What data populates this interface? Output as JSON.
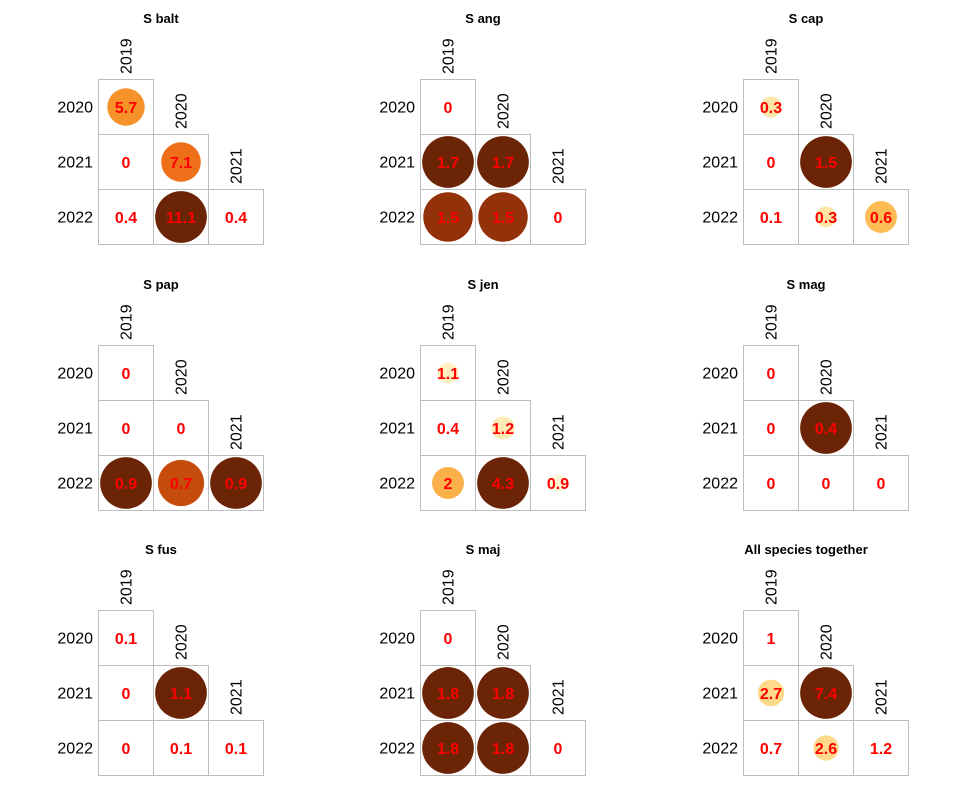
{
  "chart_data": [
    {
      "type": "heatmap",
      "title": "S balt",
      "col_labels": [
        "2019",
        "2020",
        "2021"
      ],
      "row_labels": [
        "2020",
        "2021",
        "2022"
      ],
      "cells": [
        {
          "row": 0,
          "col": 0,
          "label": "5.7",
          "color": "#f6922a",
          "size": 0.68
        },
        {
          "row": 1,
          "col": 0,
          "label": "0",
          "color": null,
          "size": 0
        },
        {
          "row": 1,
          "col": 1,
          "label": "7.1",
          "color": "#ee6f1a",
          "size": 0.72
        },
        {
          "row": 2,
          "col": 0,
          "label": "0.4",
          "color": null,
          "size": 0
        },
        {
          "row": 2,
          "col": 1,
          "label": "11.1",
          "color": "#6b2506",
          "size": 0.94
        },
        {
          "row": 2,
          "col": 2,
          "label": "0.4",
          "color": null,
          "size": 0
        }
      ]
    },
    {
      "type": "heatmap",
      "title": "S ang",
      "col_labels": [
        "2019",
        "2020",
        "2021"
      ],
      "row_labels": [
        "2020",
        "2021",
        "2022"
      ],
      "cells": [
        {
          "row": 0,
          "col": 0,
          "label": "0",
          "color": null,
          "size": 0
        },
        {
          "row": 1,
          "col": 0,
          "label": "1.7",
          "color": "#6b2506",
          "size": 0.94
        },
        {
          "row": 1,
          "col": 1,
          "label": "1.7",
          "color": "#6b2506",
          "size": 0.94
        },
        {
          "row": 2,
          "col": 0,
          "label": "1.5",
          "color": "#93320a",
          "size": 0.9
        },
        {
          "row": 2,
          "col": 1,
          "label": "1.5",
          "color": "#93320a",
          "size": 0.9
        },
        {
          "row": 2,
          "col": 2,
          "label": "0",
          "color": null,
          "size": 0
        }
      ]
    },
    {
      "type": "heatmap",
      "title": "S cap",
      "col_labels": [
        "2019",
        "2020",
        "2021"
      ],
      "row_labels": [
        "2020",
        "2021",
        "2022"
      ],
      "cells": [
        {
          "row": 0,
          "col": 0,
          "label": "0.3",
          "color": "#fee6a6",
          "size": 0.38
        },
        {
          "row": 1,
          "col": 0,
          "label": "0",
          "color": null,
          "size": 0
        },
        {
          "row": 1,
          "col": 1,
          "label": "1.5",
          "color": "#6b2506",
          "size": 0.94
        },
        {
          "row": 2,
          "col": 0,
          "label": "0.1",
          "color": null,
          "size": 0
        },
        {
          "row": 2,
          "col": 1,
          "label": "0.3",
          "color": "#fee6a6",
          "size": 0.38
        },
        {
          "row": 2,
          "col": 2,
          "label": "0.6",
          "color": "#fdbd54",
          "size": 0.58
        }
      ]
    },
    {
      "type": "heatmap",
      "title": "S pap",
      "col_labels": [
        "2019",
        "2020",
        "2021"
      ],
      "row_labels": [
        "2020",
        "2021",
        "2022"
      ],
      "cells": [
        {
          "row": 0,
          "col": 0,
          "label": "0",
          "color": null,
          "size": 0
        },
        {
          "row": 1,
          "col": 0,
          "label": "0",
          "color": null,
          "size": 0
        },
        {
          "row": 1,
          "col": 1,
          "label": "0",
          "color": null,
          "size": 0
        },
        {
          "row": 2,
          "col": 0,
          "label": "0.9",
          "color": "#6b2506",
          "size": 0.94
        },
        {
          "row": 2,
          "col": 1,
          "label": "0.7",
          "color": "#c54c0a",
          "size": 0.84
        },
        {
          "row": 2,
          "col": 2,
          "label": "0.9",
          "color": "#6b2506",
          "size": 0.94
        }
      ]
    },
    {
      "type": "heatmap",
      "title": "S jen",
      "col_labels": [
        "2019",
        "2020",
        "2021"
      ],
      "row_labels": [
        "2020",
        "2021",
        "2022"
      ],
      "cells": [
        {
          "row": 0,
          "col": 0,
          "label": "1.1",
          "color": "#fff0c0",
          "size": 0.38
        },
        {
          "row": 1,
          "col": 0,
          "label": "0.4",
          "color": null,
          "size": 0
        },
        {
          "row": 1,
          "col": 1,
          "label": "1.2",
          "color": "#feebb6",
          "size": 0.42
        },
        {
          "row": 2,
          "col": 0,
          "label": "2",
          "color": "#fbb04a",
          "size": 0.58
        },
        {
          "row": 2,
          "col": 1,
          "label": "4.3",
          "color": "#6b2506",
          "size": 0.94
        },
        {
          "row": 2,
          "col": 2,
          "label": "0.9",
          "color": "#fff6d8",
          "size": 0.3
        }
      ]
    },
    {
      "type": "heatmap",
      "title": "S mag",
      "col_labels": [
        "2019",
        "2020",
        "2021"
      ],
      "row_labels": [
        "2020",
        "2021",
        "2022"
      ],
      "cells": [
        {
          "row": 0,
          "col": 0,
          "label": "0",
          "color": null,
          "size": 0
        },
        {
          "row": 1,
          "col": 0,
          "label": "0",
          "color": null,
          "size": 0
        },
        {
          "row": 1,
          "col": 1,
          "label": "0.4",
          "color": "#6b2506",
          "size": 0.94
        },
        {
          "row": 2,
          "col": 0,
          "label": "0",
          "color": null,
          "size": 0
        },
        {
          "row": 2,
          "col": 1,
          "label": "0",
          "color": null,
          "size": 0
        },
        {
          "row": 2,
          "col": 2,
          "label": "0",
          "color": null,
          "size": 0
        }
      ]
    },
    {
      "type": "heatmap",
      "title": "S fus",
      "col_labels": [
        "2019",
        "2020",
        "2021"
      ],
      "row_labels": [
        "2020",
        "2021",
        "2022"
      ],
      "cells": [
        {
          "row": 0,
          "col": 0,
          "label": "0.1",
          "color": null,
          "size": 0
        },
        {
          "row": 1,
          "col": 0,
          "label": "0",
          "color": null,
          "size": 0
        },
        {
          "row": 1,
          "col": 1,
          "label": "1.1",
          "color": "#6b2506",
          "size": 0.94
        },
        {
          "row": 2,
          "col": 0,
          "label": "0",
          "color": null,
          "size": 0
        },
        {
          "row": 2,
          "col": 1,
          "label": "0.1",
          "color": null,
          "size": 0
        },
        {
          "row": 2,
          "col": 2,
          "label": "0.1",
          "color": null,
          "size": 0
        }
      ]
    },
    {
      "type": "heatmap",
      "title": "S maj",
      "col_labels": [
        "2019",
        "2020",
        "2021"
      ],
      "row_labels": [
        "2020",
        "2021",
        "2022"
      ],
      "cells": [
        {
          "row": 0,
          "col": 0,
          "label": "0",
          "color": null,
          "size": 0
        },
        {
          "row": 1,
          "col": 0,
          "label": "1.8",
          "color": "#6b2506",
          "size": 0.94
        },
        {
          "row": 1,
          "col": 1,
          "label": "1.8",
          "color": "#6b2506",
          "size": 0.94
        },
        {
          "row": 2,
          "col": 0,
          "label": "1.8",
          "color": "#6b2506",
          "size": 0.94
        },
        {
          "row": 2,
          "col": 1,
          "label": "1.8",
          "color": "#6b2506",
          "size": 0.94
        },
        {
          "row": 2,
          "col": 2,
          "label": "0",
          "color": null,
          "size": 0
        }
      ]
    },
    {
      "type": "heatmap",
      "title": "All species together",
      "col_labels": [
        "2019",
        "2020",
        "2021"
      ],
      "row_labels": [
        "2020",
        "2021",
        "2022"
      ],
      "cells": [
        {
          "row": 0,
          "col": 0,
          "label": "1",
          "color": null,
          "size": 0
        },
        {
          "row": 1,
          "col": 0,
          "label": "2.7",
          "color": "#fed98a",
          "size": 0.48
        },
        {
          "row": 1,
          "col": 1,
          "label": "7.4",
          "color": "#6b2506",
          "size": 0.94
        },
        {
          "row": 2,
          "col": 0,
          "label": "0.7",
          "color": null,
          "size": 0
        },
        {
          "row": 2,
          "col": 1,
          "label": "2.6",
          "color": "#fed98a",
          "size": 0.46
        },
        {
          "row": 2,
          "col": 2,
          "label": "1.2",
          "color": null,
          "size": 0
        }
      ]
    }
  ]
}
